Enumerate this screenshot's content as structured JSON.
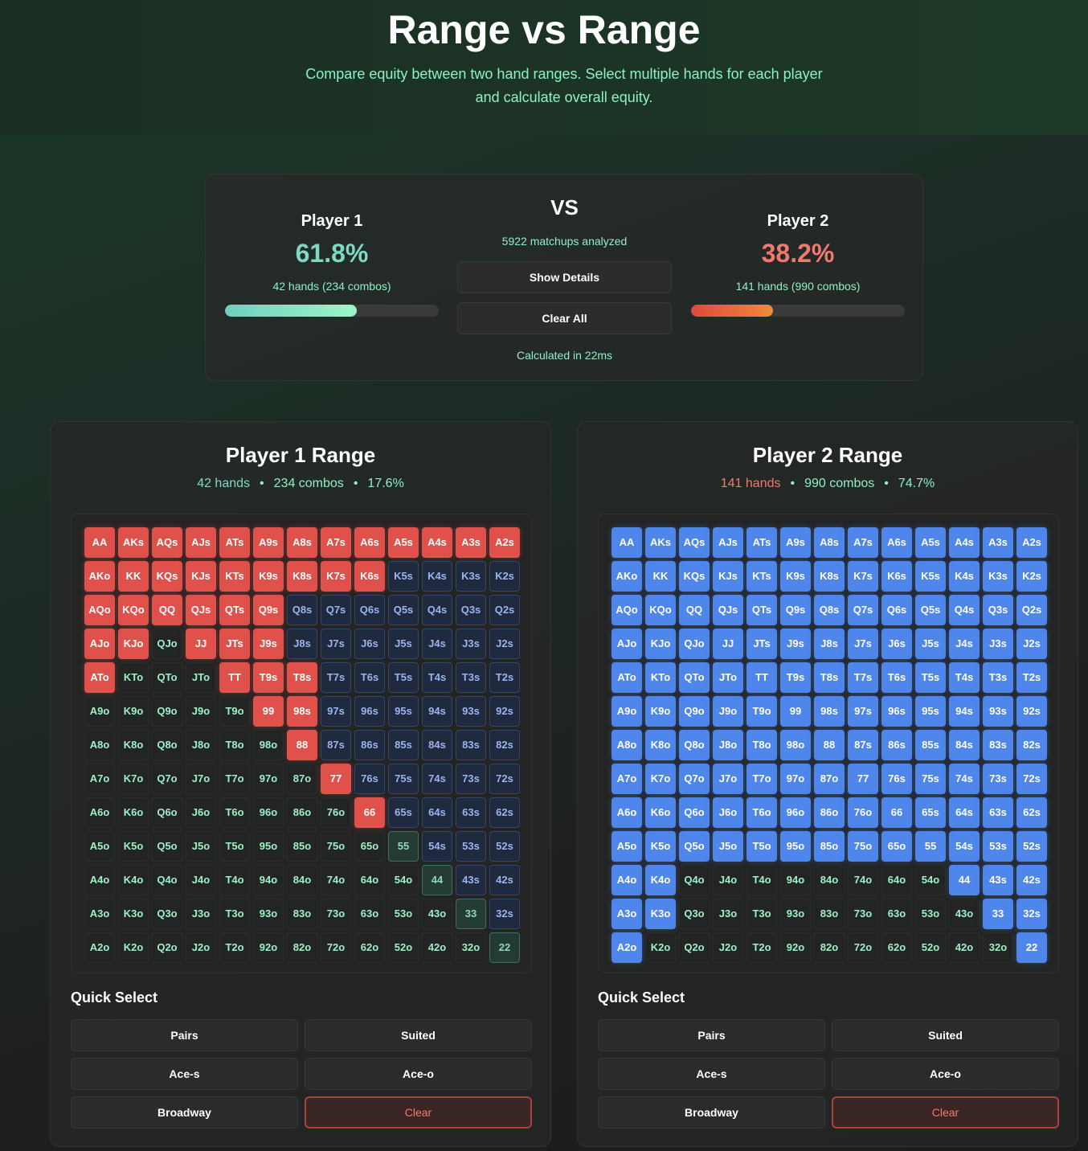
{
  "header": {
    "title": "Range vs Range",
    "subtitle": "Compare equity between two hand ranges. Select multiple hands for each player and calculate overall equity."
  },
  "summary": {
    "player1": {
      "name": "Player 1",
      "equity": "61.8%",
      "equity_value": 61.8,
      "hands": "42 hands (234 combos)"
    },
    "player2": {
      "name": "Player 2",
      "equity": "38.2%",
      "equity_value": 38.2,
      "hands": "141 hands (990 combos)"
    },
    "vs_label": "VS",
    "matchups": "5922 matchups analyzed",
    "show_details_label": "Show Details",
    "clear_all_label": "Clear All",
    "calc_time": "Calculated in 22ms"
  },
  "ranks": [
    "A",
    "K",
    "Q",
    "J",
    "T",
    "9",
    "8",
    "7",
    "6",
    "5",
    "4",
    "3",
    "2"
  ],
  "panels": {
    "left": {
      "title": "Player 1 Range",
      "hands": "42 hands",
      "combos": "234 combos",
      "percent": "17.6%",
      "dot": "•",
      "selected": [
        "AA",
        "AKs",
        "AQs",
        "AJs",
        "ATs",
        "A9s",
        "A8s",
        "A7s",
        "A6s",
        "A5s",
        "A4s",
        "A3s",
        "A2s",
        "AKo",
        "KK",
        "KQs",
        "KJs",
        "KTs",
        "K9s",
        "K8s",
        "K7s",
        "K6s",
        "AQo",
        "KQo",
        "QQ",
        "QJs",
        "QTs",
        "Q9s",
        "AJo",
        "KJo",
        "JJ",
        "JTs",
        "J9s",
        "ATo",
        "TT",
        "T9s",
        "T8s",
        "99",
        "98s",
        "88",
        "77",
        "66"
      ],
      "selected_color": "#e0514c"
    },
    "right": {
      "title": "Player 2 Range",
      "hands": "141 hands",
      "combos": "990 combos",
      "percent": "74.7%",
      "dot": "•",
      "selected_color": "#4f86ec"
    }
  },
  "quick_select": {
    "title": "Quick Select",
    "pairs": "Pairs",
    "suited": "Suited",
    "ace_s": "Ace-s",
    "ace_o": "Ace-o",
    "broadway": "Broadway",
    "clear": "Clear"
  },
  "colors": {
    "accent_green": "#8ef0c4",
    "player1_red": "#e0514c",
    "player2_blue": "#4f86ec"
  }
}
